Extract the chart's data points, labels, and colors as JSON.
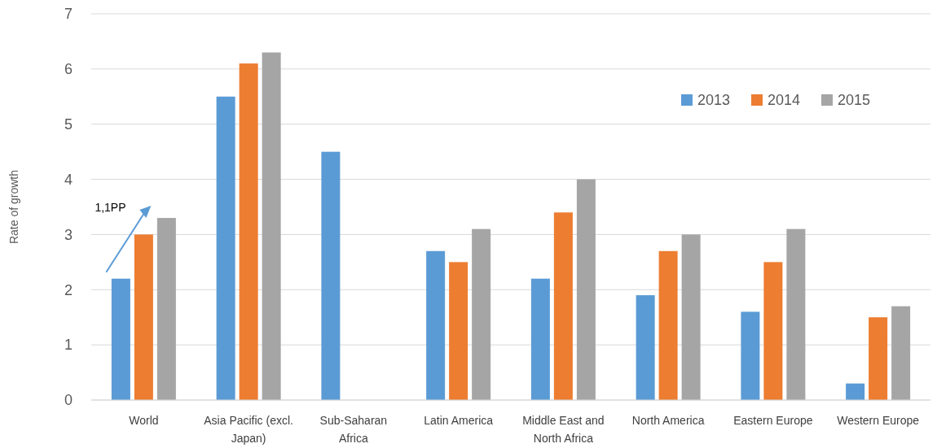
{
  "chart_data": {
    "type": "bar",
    "ylabel": "Rate of growth",
    "categories": [
      "World",
      "Asia Pacific (excl. Japan)",
      "Sub-Saharan Africa",
      "Latin America",
      "Middle East and North Africa",
      "North America",
      "Eastern Europe",
      "Western Europe"
    ],
    "series": [
      {
        "name": "2013",
        "color": "#5b9bd5",
        "values": [
          2.2,
          5.5,
          4.5,
          2.7,
          2.2,
          1.9,
          1.6,
          0.3
        ]
      },
      {
        "name": "2014",
        "color": "#ed7d31",
        "values": [
          3.0,
          6.1,
          null,
          2.5,
          3.4,
          2.7,
          2.5,
          1.5
        ]
      },
      {
        "name": "2015",
        "color": "#a5a5a5",
        "values": [
          3.3,
          6.3,
          null,
          3.1,
          4.0,
          3.0,
          3.1,
          1.7
        ]
      }
    ],
    "ylim": [
      0,
      7
    ],
    "yticks": [
      0,
      1,
      2,
      3,
      4,
      5,
      6,
      7
    ],
    "grid": "y",
    "legend": "top right",
    "annotations": [
      "1,1PP"
    ]
  }
}
